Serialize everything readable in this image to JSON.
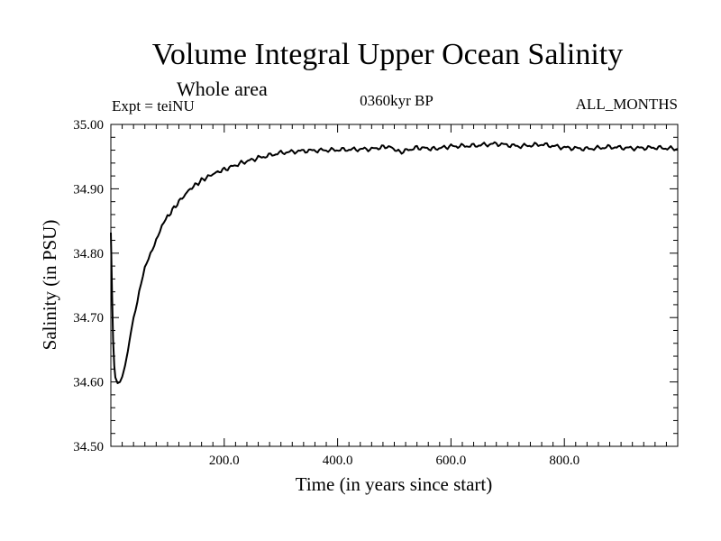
{
  "header": {
    "title": "Volume Integral Upper Ocean Salinity",
    "subtitle": "Whole area",
    "expt": "Expt = teiNU",
    "bp": "0360kyr BP",
    "months": "ALL_MONTHS"
  },
  "chart_data": {
    "type": "line",
    "title": "Volume Integral Upper Ocean Salinity",
    "xlabel": "Time (in years since start)",
    "ylabel": "Salinity (in PSU)",
    "xlim": [
      0,
      1000
    ],
    "ylim": [
      34.5,
      35.0
    ],
    "x_ticks": [
      200,
      400,
      600,
      800
    ],
    "x_tick_labels": [
      "200.0",
      "400.0",
      "600.0",
      "800.0"
    ],
    "y_ticks": [
      34.5,
      34.6,
      34.7,
      34.8,
      34.9,
      35.0
    ],
    "y_tick_labels": [
      "34.50",
      "34.60",
      "34.70",
      "34.80",
      "34.90",
      "35.00"
    ],
    "series": [
      {
        "name": "salinity",
        "x": [
          0,
          2,
          4,
          6,
          8,
          12,
          16,
          20,
          25,
          30,
          35,
          40,
          50,
          60,
          70,
          80,
          90,
          100,
          120,
          140,
          160,
          180,
          200,
          230,
          260,
          300,
          340,
          380,
          420,
          460,
          490,
          510,
          540,
          570,
          600,
          640,
          680,
          720,
          760,
          800,
          840,
          880,
          920,
          960,
          1000
        ],
        "y": [
          34.832,
          34.74,
          34.665,
          34.625,
          34.607,
          34.598,
          34.6,
          34.608,
          34.625,
          34.648,
          34.675,
          34.7,
          34.74,
          34.775,
          34.8,
          34.822,
          34.84,
          34.857,
          34.88,
          34.9,
          34.913,
          34.923,
          34.93,
          34.94,
          34.948,
          34.956,
          34.959,
          34.96,
          34.961,
          34.962,
          34.966,
          34.957,
          34.964,
          34.962,
          34.966,
          34.967,
          34.97,
          34.966,
          34.969,
          34.964,
          34.962,
          34.965,
          34.963,
          34.964,
          34.962
        ]
      }
    ]
  }
}
